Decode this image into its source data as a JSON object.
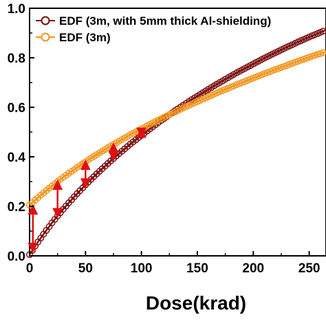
{
  "chart_data": {
    "type": "scatter",
    "xlabel": "Dose(krad)",
    "ylabel": "",
    "xlim": [
      0,
      265
    ],
    "ylim": [
      0,
      1.0
    ],
    "x_ticks": [
      "0",
      "50",
      "100",
      "150",
      "200",
      "250"
    ],
    "y_ticks": [
      "0.0",
      "0.2",
      "0.4",
      "0.6",
      "0.8",
      "1.0"
    ],
    "legend_position": "top-left",
    "series": [
      {
        "name": "EDF (3m, with 5mm thick Al-shielding)",
        "color": "#7a1010",
        "marker": "open-circle",
        "fit_line": true,
        "x": [
          0,
          5,
          10,
          15,
          20,
          25,
          30,
          35,
          40,
          45,
          50,
          55,
          60,
          65,
          70,
          75,
          80,
          85,
          90,
          95,
          100,
          105,
          110,
          115,
          120,
          125,
          130,
          135,
          140,
          145,
          150,
          155,
          160,
          165,
          170,
          175,
          180,
          185,
          190,
          195,
          200,
          205,
          210,
          215,
          220,
          225,
          230,
          235,
          240,
          245,
          250,
          255,
          260,
          265
        ],
        "y": [
          0.005,
          0.04,
          0.072,
          0.103,
          0.133,
          0.161,
          0.188,
          0.214,
          0.239,
          0.263,
          0.287,
          0.309,
          0.331,
          0.352,
          0.373,
          0.393,
          0.413,
          0.432,
          0.451,
          0.469,
          0.487,
          0.504,
          0.521,
          0.538,
          0.554,
          0.57,
          0.586,
          0.601,
          0.616,
          0.631,
          0.645,
          0.659,
          0.673,
          0.687,
          0.7,
          0.713,
          0.726,
          0.739,
          0.751,
          0.763,
          0.775,
          0.787,
          0.799,
          0.81,
          0.821,
          0.832,
          0.843,
          0.853,
          0.864,
          0.874,
          0.884,
          0.893,
          0.903,
          0.912
        ]
      },
      {
        "name": "EDF (3m)",
        "color": "#f0961e",
        "marker": "open-circle",
        "fit_line": true,
        "x": [
          0,
          5,
          10,
          15,
          20,
          25,
          30,
          35,
          40,
          45,
          50,
          55,
          60,
          65,
          70,
          75,
          80,
          85,
          90,
          95,
          100,
          105,
          110,
          115,
          120,
          125,
          130,
          135,
          140,
          145,
          150,
          155,
          160,
          165,
          170,
          175,
          180,
          185,
          190,
          195,
          200,
          205,
          210,
          215,
          220,
          225,
          230,
          235,
          240,
          245,
          250,
          255,
          260,
          265
        ],
        "y": [
          0.205,
          0.225,
          0.245,
          0.264,
          0.282,
          0.3,
          0.317,
          0.333,
          0.349,
          0.365,
          0.38,
          0.395,
          0.409,
          0.423,
          0.437,
          0.45,
          0.463,
          0.476,
          0.489,
          0.501,
          0.513,
          0.525,
          0.537,
          0.548,
          0.559,
          0.57,
          0.581,
          0.592,
          0.603,
          0.613,
          0.623,
          0.633,
          0.643,
          0.653,
          0.663,
          0.672,
          0.682,
          0.691,
          0.7,
          0.709,
          0.718,
          0.727,
          0.736,
          0.744,
          0.753,
          0.761,
          0.769,
          0.778,
          0.786,
          0.794,
          0.802,
          0.81,
          0.817,
          0.825
        ]
      }
    ],
    "annotations": [
      {
        "type": "double-arrow",
        "color": "#e01010",
        "x": 3,
        "y_from": 0.02,
        "y_to": 0.2
      },
      {
        "type": "double-arrow",
        "color": "#e01010",
        "x": 25,
        "y_from": 0.16,
        "y_to": 0.3
      },
      {
        "type": "double-arrow",
        "color": "#e01010",
        "x": 50,
        "y_from": 0.28,
        "y_to": 0.38
      },
      {
        "type": "double-arrow",
        "color": "#e01010",
        "x": 75,
        "y_from": 0.39,
        "y_to": 0.45
      },
      {
        "type": "double-arrow",
        "color": "#e01010",
        "x": 100,
        "y_from": 0.485,
        "y_to": 0.51
      }
    ]
  }
}
